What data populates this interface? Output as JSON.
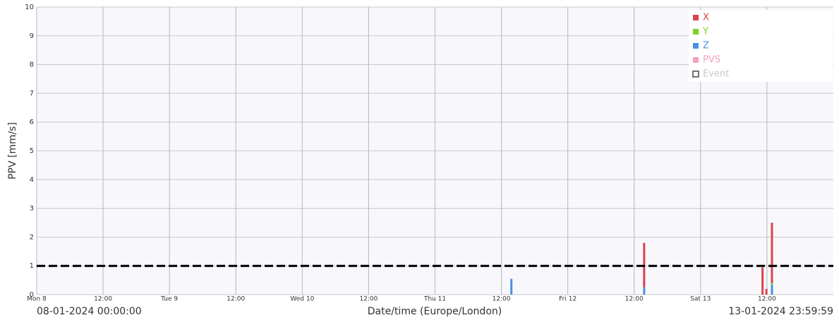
{
  "chart_data": {
    "type": "bar",
    "y_label": "PPV [mm/s]",
    "x_label": "Date/time (Europe/London)",
    "start_label": "08-01-2024 00:00:00",
    "end_label": "13-01-2024 23:59:59",
    "x": [
      85.8,
      109.8,
      131.2,
      131.9,
      132.9
    ],
    "series": [
      {
        "name": "X",
        "color": "#d9434f",
        "values": [
          null,
          1.55,
          0.95,
          0.2,
          2.1
        ]
      },
      {
        "name": "Y",
        "color": "#7ed321",
        "values": [
          null,
          null,
          null,
          null,
          0.05
        ]
      },
      {
        "name": "Z",
        "color": "#4a90e2",
        "values": [
          0.55,
          0.25,
          null,
          null,
          0.35
        ]
      },
      {
        "name": "PVS",
        "color": "#f5a0bd",
        "values": [
          null,
          null,
          null,
          null,
          null
        ]
      },
      {
        "name": "Event",
        "color": "#444444",
        "values": [
          null,
          null,
          null,
          null,
          null
        ]
      }
    ],
    "threshold": 1,
    "xlim": [
      0,
      144
    ],
    "xticks": [
      {
        "value": 0,
        "label": "Mon 8"
      },
      {
        "value": 12,
        "label": "12:00"
      },
      {
        "value": 24,
        "label": "Tue 9"
      },
      {
        "value": 36,
        "label": "12:00"
      },
      {
        "value": 48,
        "label": "Wed 10"
      },
      {
        "value": 60,
        "label": "12:00"
      },
      {
        "value": 72,
        "label": "Thu 11"
      },
      {
        "value": 84,
        "label": "12:00"
      },
      {
        "value": 96,
        "label": "Fri 12"
      },
      {
        "value": 108,
        "label": "12:00"
      },
      {
        "value": 120,
        "label": "Sat 13"
      },
      {
        "value": 132,
        "label": "12:00"
      }
    ],
    "ylim": [
      0,
      10
    ],
    "yticks": [
      0,
      1,
      2,
      3,
      4,
      5,
      6,
      7,
      8,
      9,
      10
    ],
    "grid": true
  }
}
